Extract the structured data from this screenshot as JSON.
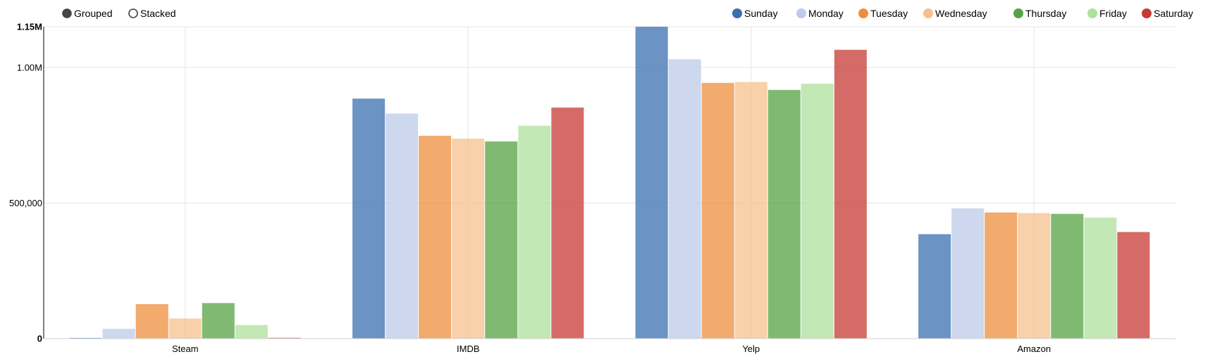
{
  "controls": [
    {
      "label": "Grouped",
      "selected": true
    },
    {
      "label": "Stacked",
      "selected": false
    }
  ],
  "chart_data": {
    "type": "bar",
    "mode": "grouped",
    "categories": [
      "Steam",
      "IMDB",
      "Yelp",
      "Amazon"
    ],
    "series": [
      {
        "name": "Sunday",
        "color": "#3a6fb0",
        "values": [
          2000,
          885000,
          1150000,
          385000
        ]
      },
      {
        "name": "Monday",
        "color": "#bccbe8",
        "values": [
          36000,
          830000,
          1030000,
          480000
        ]
      },
      {
        "name": "Tuesday",
        "color": "#ee8e3c",
        "values": [
          127000,
          748000,
          943000,
          465000
        ]
      },
      {
        "name": "Wednesday",
        "color": "#f6c08d",
        "values": [
          74000,
          737000,
          946000,
          463000
        ]
      },
      {
        "name": "Thursday",
        "color": "#56a343",
        "values": [
          131000,
          727000,
          917000,
          460000
        ]
      },
      {
        "name": "Friday",
        "color": "#afe09c",
        "values": [
          50000,
          785000,
          940000,
          446000
        ]
      },
      {
        "name": "Saturday",
        "color": "#c63a34",
        "values": [
          3000,
          852000,
          1065000,
          393000
        ]
      }
    ],
    "y_ticks": [
      {
        "value": 0,
        "label": "0"
      },
      {
        "value": 500000,
        "label": "500,000"
      },
      {
        "value": 1000000,
        "label": "1.00M"
      },
      {
        "value": 1150000,
        "label": "1.15M"
      }
    ],
    "ylim": [
      0,
      1150000
    ],
    "grid": true,
    "legend_position": "top-right"
  }
}
